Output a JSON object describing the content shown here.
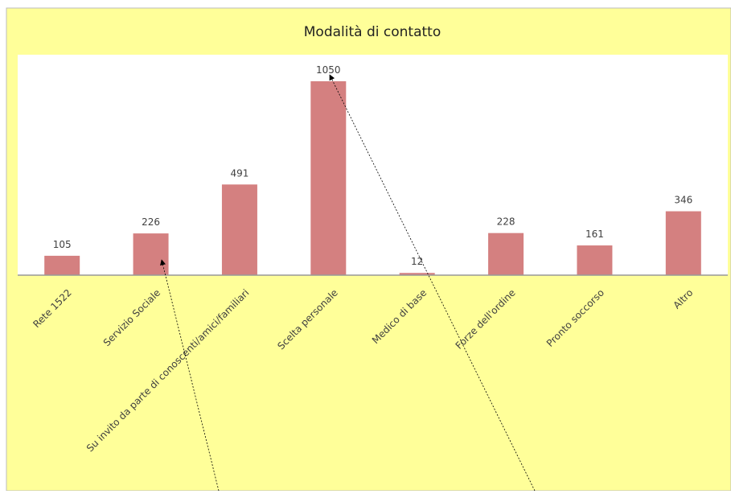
{
  "chart_data": {
    "type": "bar",
    "title": "Modalità di contatto",
    "categories": [
      "Rete 1522",
      "Servizio Sociale",
      "Su invito da parte di conoscenti/amici/familiari",
      "Scelta personale",
      "Medico di base",
      "Forze dell'ordine",
      "Pronto soccorso",
      "Altro"
    ],
    "values": [
      105,
      226,
      491,
      1050,
      12,
      228,
      161,
      346
    ],
    "color": "#d48080"
  }
}
